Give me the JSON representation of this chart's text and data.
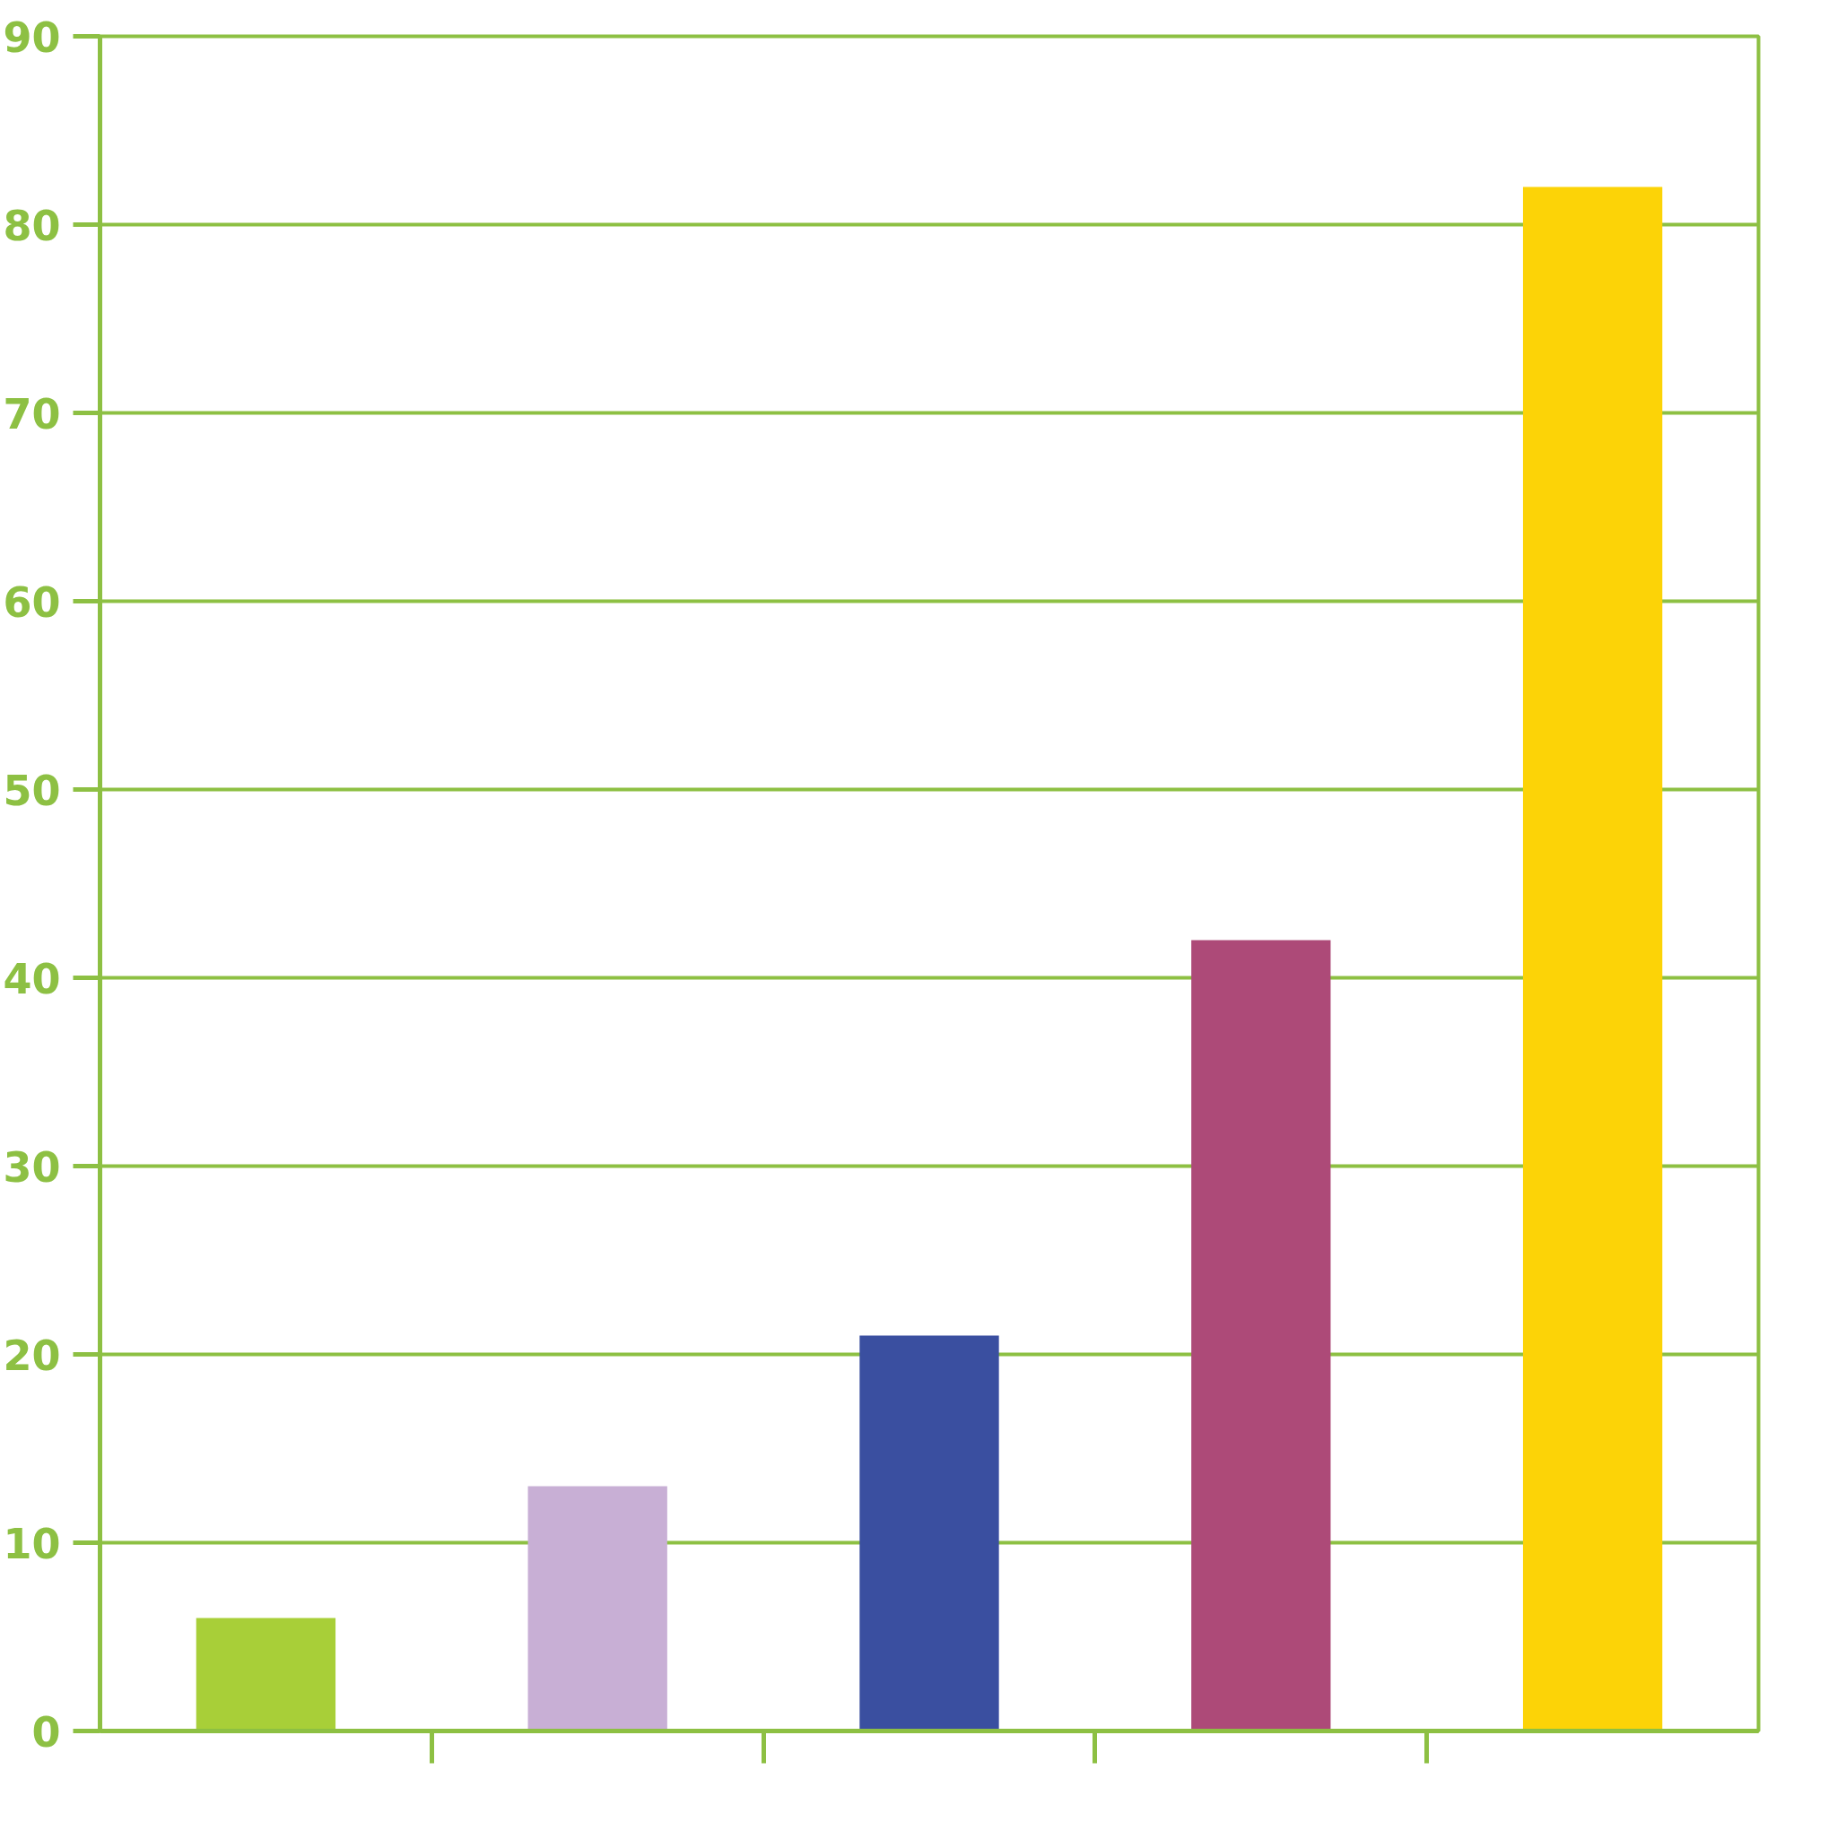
{
  "chart_data": {
    "type": "bar",
    "categories": [
      null,
      null,
      null,
      null,
      null
    ],
    "values": [
      6,
      13,
      21,
      42,
      82
    ],
    "colors": [
      "#a8cf38",
      "#c8afd5",
      "#3a4fa0",
      "#ad4a78",
      "#fcd307"
    ],
    "ylim": [
      0,
      90
    ],
    "yticks": [
      0,
      10,
      20,
      30,
      40,
      50,
      60,
      70,
      80,
      90
    ],
    "grid": "y",
    "tick_labels": "y"
  }
}
